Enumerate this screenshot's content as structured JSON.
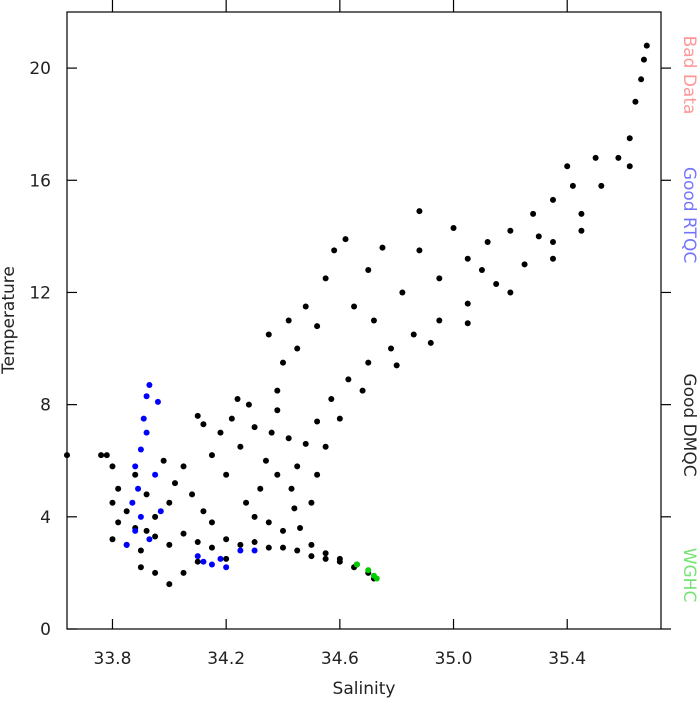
{
  "chart_data": {
    "type": "scatter",
    "x_label": "Salinity",
    "y_label": "Temperature",
    "xlim": [
      33.64,
      35.73
    ],
    "ylim": [
      0,
      22
    ],
    "xticks": [
      33.8,
      34.2,
      34.6,
      {
        "value": 35,
        "label": "35.0"
      },
      35.4
    ],
    "yticks": [
      0,
      4,
      8,
      12,
      16,
      20
    ],
    "series": [
      {
        "name": "Bad Data",
        "color": "#ff4040",
        "x": [],
        "values": []
      },
      {
        "name": "Good RTQC",
        "color": "#0000ff",
        "x": [
          33.93,
          33.92,
          33.96,
          33.91,
          33.92,
          33.9,
          33.88,
          33.89,
          33.87,
          33.9,
          33.88,
          33.93,
          33.95,
          33.97,
          34.1,
          34.12,
          34.15,
          34.18,
          34.2,
          34.25,
          34.3,
          33.85
        ],
        "values": [
          8.7,
          8.3,
          8.1,
          7.5,
          7.0,
          6.4,
          5.8,
          5.0,
          4.5,
          4.0,
          3.5,
          3.2,
          5.5,
          4.2,
          2.6,
          2.4,
          2.3,
          2.5,
          2.2,
          2.8,
          2.8,
          3.0
        ]
      },
      {
        "name": "Good DMQC",
        "color": "#000000",
        "x": [
          34.72,
          34.7,
          34.66,
          34.6,
          34.55,
          34.5,
          34.46,
          34.44,
          34.43,
          34.45,
          34.48,
          34.52,
          34.57,
          34.63,
          34.7,
          34.78,
          34.86,
          34.95,
          35.05,
          35.15,
          35.25,
          35.35,
          35.45,
          35.52,
          35.58,
          35.62,
          35.64,
          35.66,
          35.67,
          35.68,
          35.62,
          34.5,
          34.52,
          34.55,
          34.6,
          34.68,
          34.8,
          34.92,
          35.05,
          35.2,
          35.35,
          35.45,
          34.42,
          34.48,
          34.55,
          34.58,
          34.62,
          34.7,
          34.75,
          34.82,
          34.88,
          34.95,
          35.0,
          35.05,
          35.12,
          35.2,
          35.28,
          35.35,
          35.42,
          35.5,
          34.88,
          34.35,
          34.4,
          34.38,
          34.45,
          34.52,
          34.65,
          34.72,
          35.3,
          35.4,
          35.1,
          34.3,
          34.32,
          34.34,
          34.36,
          34.38,
          34.3,
          34.25,
          34.22,
          34.18,
          34.15,
          34.12,
          34.1,
          34.2,
          34.27,
          34.35,
          34.4,
          34.38,
          34.42,
          34.28,
          34.24,
          34.05,
          34.02,
          34.0,
          33.98,
          33.95,
          33.92,
          34.08,
          34.12,
          34.15,
          33.88,
          33.85,
          33.82,
          33.8,
          33.78,
          33.76,
          33.8,
          33.82,
          33.64,
          33.8,
          33.85,
          33.9,
          33.95,
          34.0,
          34.05,
          34.1,
          34.15,
          34.2,
          34.25,
          34.3,
          34.35,
          34.4,
          34.45,
          34.5,
          34.55,
          34.6,
          34.65,
          33.9,
          33.95,
          34.0,
          34.05,
          34.1,
          34.2,
          33.88,
          33.92
        ],
        "values": [
          1.8,
          2.0,
          2.3,
          2.5,
          2.7,
          3.0,
          3.6,
          4.3,
          5.0,
          5.8,
          6.6,
          7.4,
          8.2,
          8.9,
          9.5,
          10.0,
          10.5,
          11.0,
          11.6,
          12.3,
          13.0,
          13.8,
          14.8,
          15.8,
          16.8,
          17.5,
          18.8,
          19.6,
          20.3,
          20.8,
          16.5,
          4.5,
          5.5,
          6.5,
          7.5,
          8.5,
          9.4,
          10.2,
          10.9,
          12.0,
          13.2,
          14.2,
          11.0,
          11.5,
          12.5,
          13.5,
          13.9,
          12.8,
          13.6,
          12.0,
          13.5,
          12.5,
          14.3,
          13.2,
          13.8,
          14.2,
          14.8,
          15.3,
          15.8,
          16.8,
          14.9,
          10.5,
          9.5,
          8.5,
          10.0,
          10.8,
          11.5,
          11.0,
          14.0,
          16.5,
          12.8,
          4.0,
          5.0,
          6.0,
          7.0,
          7.8,
          7.2,
          6.5,
          7.5,
          7.0,
          6.2,
          7.3,
          7.6,
          5.5,
          4.5,
          3.8,
          3.5,
          5.5,
          6.8,
          8.0,
          8.2,
          5.8,
          5.2,
          4.5,
          6.0,
          4.0,
          4.8,
          4.8,
          4.2,
          3.8,
          5.5,
          4.2,
          5.0,
          5.8,
          6.2,
          6.2,
          4.5,
          3.8,
          6.2,
          3.2,
          3.0,
          2.8,
          3.3,
          3.0,
          3.4,
          3.1,
          2.9,
          3.2,
          3.0,
          3.1,
          2.9,
          2.9,
          2.8,
          2.6,
          2.5,
          2.4,
          2.2,
          2.2,
          2.0,
          1.6,
          2.0,
          2.4,
          2.5,
          3.6,
          3.5
        ]
      },
      {
        "name": "WGHC",
        "color": "#00cc00",
        "x": [
          34.72,
          34.7,
          34.66,
          34.73
        ],
        "values": [
          1.9,
          2.1,
          2.3,
          1.8
        ]
      }
    ]
  }
}
